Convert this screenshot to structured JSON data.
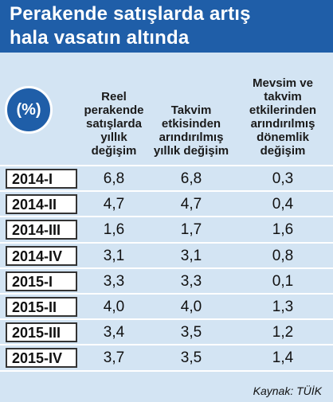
{
  "header": {
    "title": [
      "Perakende satışlarda artış",
      "hala vasatın altında"
    ]
  },
  "table": {
    "unit": "(%)",
    "columns": [
      [
        "Reel",
        "perakende",
        "satışlarda",
        "yıllık",
        "değişim"
      ],
      [
        "Takvim",
        "etkisinden",
        "arındırılmış",
        "yıllık değişim"
      ],
      [
        "Mevsim ve",
        "takvim",
        "etkilerinden",
        "arındırılmış",
        "dönemlik",
        "değişim"
      ]
    ],
    "rows": [
      [
        "2014-I",
        "6,8",
        "6,8",
        "0,3"
      ],
      [
        "2014-II",
        "4,7",
        "4,7",
        "0,4"
      ],
      [
        "2014-III",
        "1,6",
        "1,7",
        "1,6"
      ],
      [
        "2014-IV",
        "3,1",
        "3,1",
        "0,8"
      ],
      [
        "2015-I",
        "3,3",
        "3,3",
        "0,1"
      ],
      [
        "2015-II",
        "4,0",
        "4,0",
        "1,3"
      ],
      [
        "2015-III",
        "3,4",
        "3,5",
        "1,2"
      ],
      [
        "2015-IV",
        "3,7",
        "3,5",
        "1,4"
      ]
    ]
  },
  "source": "Kaynak: TÜİK"
}
